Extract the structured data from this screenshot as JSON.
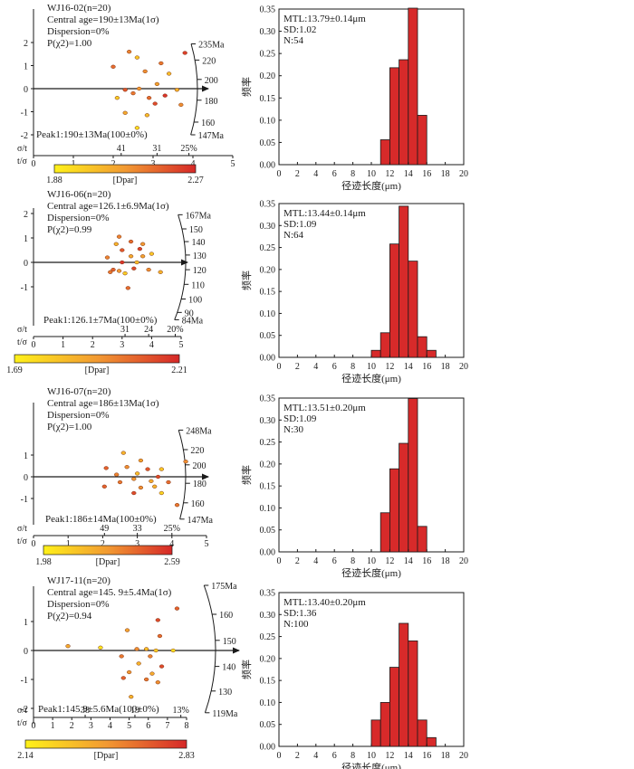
{
  "colors": {
    "bar_fill": "#d72a2a",
    "bar_stroke": "#1a1a1a",
    "ramp_low": "#fff11a",
    "ramp_high": "#d62828",
    "point_stroke": "#7a3010"
  },
  "chart_data": [
    {
      "type": "radial",
      "sample": "WJ16-02(n=20)",
      "central_age": "Central age=190±13Ma(1σ)",
      "dispersion": "Dispersion=0%",
      "p_chi2": "P(χ2)=1.00",
      "peak": "Peak1:190±13Ma(100±0%)",
      "age_scale": [
        {
          "label": "235Ma",
          "y": 1.94
        },
        {
          "label": "220",
          "y": 1.24
        },
        {
          "label": "200",
          "y": 0.4
        },
        {
          "label": "180",
          "y": -0.5
        },
        {
          "label": "160",
          "y": -1.45
        },
        {
          "label": "147Ma",
          "y": -2.0
        }
      ],
      "y_ticks": [
        "2",
        "1",
        "0",
        "-1",
        "-2"
      ],
      "y_range": [
        -2,
        2
      ],
      "axis_precision_label": "σ/t",
      "axis_precision_ticks": [
        {
          "label": "41",
          "t": 2.2
        },
        {
          "label": "31",
          "t": 3.1
        },
        {
          "label": "25%",
          "t": 3.9
        }
      ],
      "axis_t_label": "t/σ",
      "axis_t_ticks": [
        "0",
        "1",
        "2",
        "3",
        "4",
        "5"
      ],
      "t_max": 5,
      "legend_min": "1.88",
      "legend_max": "2.27",
      "legend_title": "[Dpar]",
      "points": [
        [
          2.0,
          0.95,
          0.7
        ],
        [
          2.4,
          1.6,
          0.6
        ],
        [
          2.6,
          1.35,
          0.25
        ],
        [
          2.8,
          0.75,
          0.55
        ],
        [
          3.2,
          1.1,
          0.65
        ],
        [
          3.4,
          0.65,
          0.3
        ],
        [
          3.8,
          1.55,
          0.9
        ],
        [
          3.1,
          0.2,
          0.45
        ],
        [
          2.3,
          -0.05,
          0.8
        ],
        [
          2.65,
          0.0,
          0.5
        ],
        [
          3.6,
          -0.05,
          0.35
        ],
        [
          2.5,
          -0.2,
          0.65
        ],
        [
          3.3,
          -0.3,
          0.95
        ],
        [
          2.1,
          -0.4,
          0.2
        ],
        [
          2.9,
          -0.4,
          0.7
        ],
        [
          3.7,
          -0.7,
          0.55
        ],
        [
          2.3,
          -1.05,
          0.4
        ],
        [
          2.85,
          -1.15,
          0.3
        ],
        [
          2.6,
          -1.7,
          0.1
        ],
        [
          3.05,
          -0.65,
          0.85
        ]
      ]
    },
    {
      "type": "radial",
      "sample": "WJ16-06(n=20)",
      "central_age": "Central age=126.1±6.9Ma(1σ)",
      "dispersion": "Dispersion=0%",
      "p_chi2": "P(χ2)=0.99",
      "peak": "Peak1:126.1±7Ma(100±0%)",
      "age_scale": [
        {
          "label": "167Ma",
          "y": 1.95
        },
        {
          "label": "150",
          "y": 1.37
        },
        {
          "label": "140",
          "y": 0.85
        },
        {
          "label": "130",
          "y": 0.3
        },
        {
          "label": "120",
          "y": -0.3
        },
        {
          "label": "110",
          "y": -0.9
        },
        {
          "label": "100",
          "y": -1.5
        },
        {
          "label": "90",
          "y": -2.05
        },
        {
          "label": "84Ma",
          "y": -2.35
        }
      ],
      "y_ticks": [
        "2",
        "1",
        "0",
        "-1"
      ],
      "y_range": [
        -1.9,
        2.2
      ],
      "axis_precision_label": "σ/t",
      "axis_precision_ticks": [
        {
          "label": "31",
          "t": 3.1
        },
        {
          "label": "24",
          "t": 3.9
        },
        {
          "label": "20%",
          "t": 4.8
        }
      ],
      "axis_t_label": "t/σ",
      "axis_t_ticks": [
        "0",
        "1",
        "2",
        "3",
        "4",
        "5"
      ],
      "t_max": 5,
      "legend_min": "1.69",
      "legend_max": "2.21",
      "legend_title": "[Dpar]",
      "points": [
        [
          2.9,
          1.05,
          0.6
        ],
        [
          3.3,
          0.85,
          0.7
        ],
        [
          3.7,
          0.75,
          0.5
        ],
        [
          2.8,
          0.75,
          0.35
        ],
        [
          3.0,
          0.5,
          0.8
        ],
        [
          3.6,
          0.55,
          0.9
        ],
        [
          4.0,
          0.35,
          0.25
        ],
        [
          2.5,
          0.2,
          0.6
        ],
        [
          3.3,
          0.25,
          0.4
        ],
        [
          3.5,
          0.0,
          0.3
        ],
        [
          2.7,
          -0.3,
          0.75
        ],
        [
          2.9,
          -0.35,
          0.5
        ],
        [
          3.4,
          -0.25,
          0.85
        ],
        [
          3.9,
          -0.3,
          0.55
        ],
        [
          2.6,
          -0.4,
          0.65
        ],
        [
          3.1,
          -0.45,
          0.2
        ],
        [
          3.2,
          -1.05,
          0.7
        ],
        [
          3.7,
          0.25,
          0.45
        ],
        [
          4.3,
          -0.4,
          0.35
        ],
        [
          3.0,
          0.0,
          0.95
        ]
      ]
    },
    {
      "type": "radial",
      "sample": "WJ16-07(n=20)",
      "central_age": "Central age=186±13Ma(1σ)",
      "dispersion": "Dispersion=0%",
      "p_chi2": "P(χ2)=1.00",
      "peak": "Peak1:186±14Ma(100±0%)",
      "age_scale": [
        {
          "label": "248Ma",
          "y": 2.15
        },
        {
          "label": "220",
          "y": 1.25
        },
        {
          "label": "200",
          "y": 0.55
        },
        {
          "label": "180",
          "y": -0.3
        },
        {
          "label": "160",
          "y": -1.2
        },
        {
          "label": "147Ma",
          "y": -1.95
        }
      ],
      "y_ticks": [
        "1",
        "0",
        "-1"
      ],
      "y_range": [
        -1.6,
        2.1
      ],
      "axis_precision_label": "σ/t",
      "axis_precision_ticks": [
        {
          "label": "49",
          "t": 2.05
        },
        {
          "label": "33",
          "t": 3.0
        },
        {
          "label": "25%",
          "t": 4.0
        }
      ],
      "axis_t_label": "t/σ",
      "axis_t_ticks": [
        "0",
        "1",
        "2",
        "3",
        "4",
        "5"
      ],
      "t_max": 5,
      "legend_min": "1.98",
      "legend_max": "2.59",
      "legend_title": "[Dpar]",
      "points": [
        [
          2.6,
          1.1,
          0.35
        ],
        [
          3.1,
          0.75,
          0.45
        ],
        [
          4.4,
          0.7,
          0.55
        ],
        [
          2.1,
          0.4,
          0.75
        ],
        [
          2.7,
          0.45,
          0.55
        ],
        [
          3.3,
          0.35,
          0.8
        ],
        [
          3.7,
          0.35,
          0.25
        ],
        [
          2.4,
          0.1,
          0.6
        ],
        [
          3.0,
          0.15,
          0.3
        ],
        [
          3.6,
          0.0,
          0.85
        ],
        [
          2.9,
          -0.1,
          0.5
        ],
        [
          2.5,
          -0.25,
          0.65
        ],
        [
          3.4,
          -0.2,
          0.4
        ],
        [
          3.9,
          -0.25,
          0.7
        ],
        [
          2.05,
          -0.45,
          0.75
        ],
        [
          3.1,
          -0.5,
          0.55
        ],
        [
          3.5,
          -0.45,
          0.35
        ],
        [
          2.9,
          -0.75,
          0.85
        ],
        [
          3.7,
          -0.75,
          0.15
        ],
        [
          4.15,
          -1.3,
          0.65
        ]
      ]
    },
    {
      "type": "radial",
      "sample": "WJ17-11(n=20)",
      "central_age": "Central age=145. 9±5.4Ma(1σ)",
      "dispersion": "Dispersion=0%",
      "p_chi2": "P(χ2)=0.94",
      "peak": "Peak1:145.9±5.6Ma(100±0%)",
      "age_scale": [
        {
          "label": "175Ma",
          "y": 2.25
        },
        {
          "label": "160",
          "y": 1.25
        },
        {
          "label": "150",
          "y": 0.35
        },
        {
          "label": "140",
          "y": -0.55
        },
        {
          "label": "130",
          "y": -1.4
        },
        {
          "label": "119Ma",
          "y": -2.15
        }
      ],
      "y_ticks": [
        "1",
        "0",
        "-1",
        "-2"
      ],
      "y_range": [
        -2.3,
        2.1
      ],
      "axis_precision_label": "σ/t",
      "axis_precision_ticks": [
        {
          "label": "38",
          "t": 2.7
        },
        {
          "label": "19",
          "t": 5.3
        },
        {
          "label": "13%",
          "t": 7.7
        }
      ],
      "axis_t_label": "t/σ",
      "axis_t_ticks": [
        "0",
        "1",
        "2",
        "3",
        "4",
        "5",
        "6",
        "7",
        "8"
      ],
      "t_max": 8,
      "legend_min": "2.14",
      "legend_max": "2.83",
      "legend_title": "[Dpar]",
      "points": [
        [
          7.5,
          1.45,
          0.75
        ],
        [
          6.5,
          1.05,
          0.85
        ],
        [
          4.9,
          0.7,
          0.45
        ],
        [
          6.6,
          0.5,
          0.7
        ],
        [
          1.8,
          0.15,
          0.4
        ],
        [
          3.5,
          0.1,
          0.05
        ],
        [
          5.4,
          0.05,
          0.55
        ],
        [
          5.9,
          0.05,
          0.3
        ],
        [
          6.4,
          0.0,
          0.2
        ],
        [
          7.3,
          0.0,
          0.1
        ],
        [
          4.6,
          -0.2,
          0.65
        ],
        [
          6.1,
          -0.2,
          0.6
        ],
        [
          5.5,
          -0.45,
          0.35
        ],
        [
          6.7,
          -0.55,
          0.85
        ],
        [
          5.0,
          -0.75,
          0.5
        ],
        [
          6.2,
          -0.8,
          0.4
        ],
        [
          4.7,
          -0.95,
          0.75
        ],
        [
          5.9,
          -1.0,
          0.65
        ],
        [
          6.5,
          -1.1,
          0.55
        ],
        [
          5.1,
          -1.6,
          0.35
        ]
      ]
    },
    {
      "type": "bar",
      "stats": [
        "MTL:13.79±0.14μm",
        "SD:1.02",
        "N:54"
      ],
      "xlabel": "径迹长度(μm)",
      "ylabel": "频率",
      "x_ticks": [
        0,
        2,
        4,
        6,
        8,
        10,
        12,
        14,
        16,
        18,
        20
      ],
      "y_ticks": [
        "0.35",
        "0.30",
        "0.25",
        "0.20",
        "0.15",
        "0.10",
        "0.05",
        "0.00"
      ],
      "xlim": [
        0,
        20
      ],
      "ylim": [
        0,
        0.35
      ],
      "bin_width": 1,
      "bins": [
        11,
        12,
        13,
        14,
        15
      ],
      "values": [
        0.056,
        0.218,
        0.236,
        0.352,
        0.111
      ]
    },
    {
      "type": "bar",
      "stats": [
        "MTL:13.44±0.14μm",
        "SD:1.09",
        "N:64"
      ],
      "xlabel": "径迹长度(μm)",
      "ylabel": "频率",
      "x_ticks": [
        0,
        2,
        4,
        6,
        8,
        10,
        12,
        14,
        16,
        18,
        20
      ],
      "y_ticks": [
        "0.35",
        "0.30",
        "0.25",
        "0.20",
        "0.15",
        "0.10",
        "0.05",
        "0.00"
      ],
      "xlim": [
        0,
        20
      ],
      "ylim": [
        0,
        0.35
      ],
      "bin_width": 1,
      "bins": [
        10,
        11,
        12,
        13,
        14,
        15,
        16
      ],
      "values": [
        0.016,
        0.056,
        0.258,
        0.344,
        0.219,
        0.047,
        0.016
      ]
    },
    {
      "type": "bar",
      "stats": [
        "MTL:13.51±0.20μm",
        "SD:1.09",
        "N:30"
      ],
      "xlabel": "径迹长度(μm)",
      "ylabel": "频率",
      "x_ticks": [
        0,
        2,
        4,
        6,
        8,
        10,
        12,
        14,
        16,
        18,
        20
      ],
      "y_ticks": [
        "0.35",
        "0.30",
        "0.25",
        "0.20",
        "0.15",
        "0.10",
        "0.05",
        "0.00"
      ],
      "xlim": [
        0,
        20
      ],
      "ylim": [
        0,
        0.35
      ],
      "bin_width": 1,
      "bins": [
        11,
        12,
        13,
        14,
        15
      ],
      "values": [
        0.089,
        0.189,
        0.247,
        0.349,
        0.058
      ]
    },
    {
      "type": "bar",
      "stats": [
        "MTL:13.40±0.20μm",
        "SD:1.36",
        "N:100"
      ],
      "xlabel": "径迹长度(μm)",
      "ylabel": "频率",
      "x_ticks": [
        0,
        2,
        4,
        6,
        8,
        10,
        12,
        14,
        16,
        18,
        20
      ],
      "y_ticks": [
        "0.35",
        "0.30",
        "0.25",
        "0.20",
        "0.15",
        "0.10",
        "0.05",
        "0.00"
      ],
      "xlim": [
        0,
        20
      ],
      "ylim": [
        0,
        0.35
      ],
      "bin_width": 1,
      "bins": [
        10,
        11,
        12,
        13,
        14,
        15,
        16
      ],
      "values": [
        0.06,
        0.1,
        0.18,
        0.28,
        0.24,
        0.06,
        0.02
      ]
    }
  ]
}
